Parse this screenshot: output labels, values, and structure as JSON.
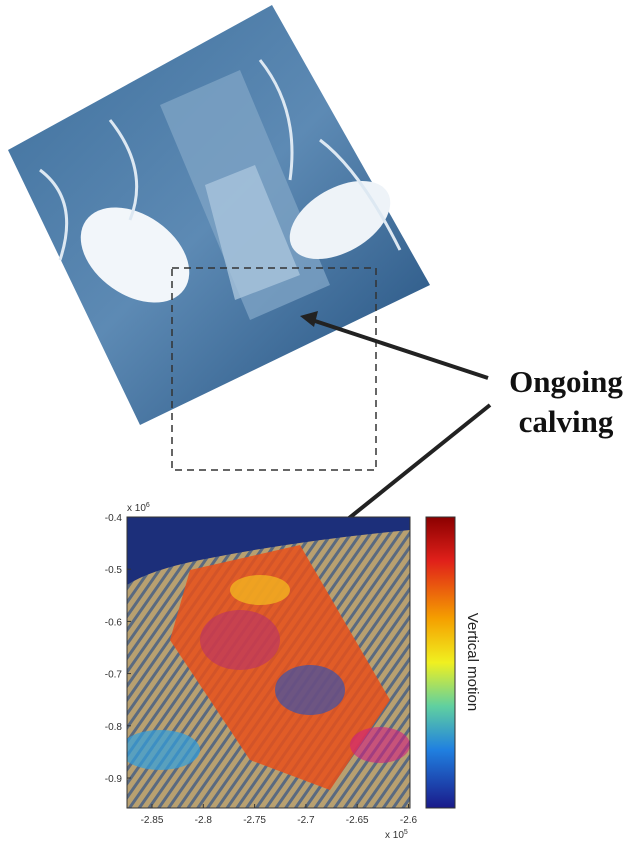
{
  "annotation": {
    "line1": "Ongoing",
    "line2": "calving"
  },
  "interferogram": {
    "y_ticks": [
      "-0.4",
      "-0.5",
      "-0.6",
      "-0.7",
      "-0.8",
      "-0.9"
    ],
    "y_multiplier": "x 10",
    "y_exponent": "6",
    "x_ticks": [
      "-2.85",
      "-2.8",
      "-2.75",
      "-2.7",
      "-2.65",
      "-2.6"
    ],
    "x_multiplier": "x 10",
    "x_exponent": "5",
    "colorbar_label": "Vertical motion"
  }
}
